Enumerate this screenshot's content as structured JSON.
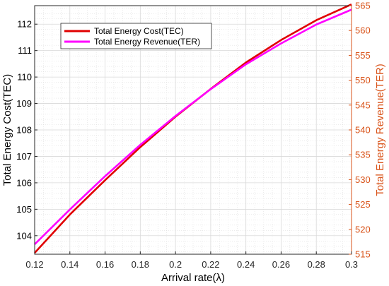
{
  "chart_data": {
    "type": "line",
    "title": "",
    "xlabel": "Arrival rate(λ)",
    "ylabel_left": "Total Energy Cost(TEC)",
    "ylabel_right": "Total Energy Revenue(TER)",
    "x": [
      0.12,
      0.14,
      0.16,
      0.18,
      0.2,
      0.22,
      0.24,
      0.26,
      0.28,
      0.3
    ],
    "xlim": [
      0.12,
      0.3
    ],
    "ylim_left": [
      103.3,
      112.7
    ],
    "ylim_right": [
      515,
      565
    ],
    "x_ticks": [
      "0.12",
      "0.14",
      "0.16",
      "0.18",
      "0.2",
      "0.22",
      "0.24",
      "0.26",
      "0.28",
      "0.3"
    ],
    "y_ticks_left": [
      "104",
      "105",
      "106",
      "107",
      "108",
      "109",
      "110",
      "111",
      "112"
    ],
    "y_ticks_right": [
      "515",
      "520",
      "525",
      "530",
      "535",
      "540",
      "545",
      "550",
      "555",
      "560",
      "565"
    ],
    "grid": true,
    "legend_position": "top-left",
    "series": [
      {
        "name": "Total Energy Cost(TEC)",
        "axis": "left",
        "color": "#e00000",
        "values": [
          103.35,
          104.8,
          106.1,
          107.35,
          108.5,
          109.55,
          110.55,
          111.4,
          112.15,
          112.75
        ]
      },
      {
        "name": "Total Energy Revenue(TER)",
        "axis": "right",
        "color": "#ff00ff",
        "values": [
          517.0,
          524.0,
          530.7,
          537.0,
          542.8,
          548.2,
          553.2,
          557.4,
          561.2,
          564.2
        ]
      }
    ],
    "colors": {
      "left_axis": "#000000",
      "right_axis": "#d95319",
      "grid": "#d9d9d9"
    }
  }
}
